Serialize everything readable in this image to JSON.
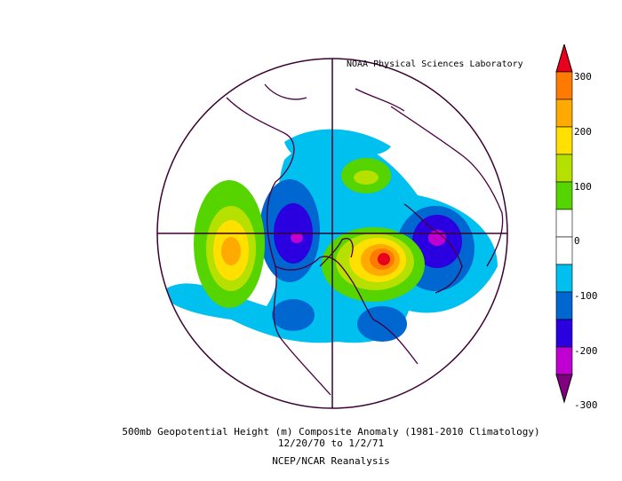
{
  "credit": "NOAA Physical Sciences Laboratory",
  "caption": {
    "line1": "500mb Geopotential Height (m) Composite Anomaly (1981-2010 Climatology)",
    "line2": "12/20/70  to 1/2/71",
    "line3": "NCEP/NCAR Reanalysis"
  },
  "colorbar": {
    "ticks": [
      "300",
      "200",
      "100",
      "0",
      "-100",
      "-200",
      "-300"
    ],
    "colors": [
      "#e8001e",
      "#ff7a00",
      "#ffaa00",
      "#ffe000",
      "#b5e000",
      "#55d400",
      "#ffffff",
      "#ffffff",
      "#00c0f0",
      "#0066d0",
      "#2a00e0",
      "#c000d0",
      "#800080"
    ]
  },
  "map": {
    "projection": "north polar stereographic",
    "features": [
      {
        "type": "positive",
        "name": "north-pacific-ridge",
        "peak": 250
      },
      {
        "type": "positive",
        "name": "north-atlantic-ridge",
        "peak": 300
      },
      {
        "type": "positive",
        "name": "arctic-ridge",
        "peak": 100
      },
      {
        "type": "negative",
        "name": "western-canada-trough",
        "peak": -250
      },
      {
        "type": "negative",
        "name": "eurasia-trough",
        "peak": -250
      }
    ]
  }
}
